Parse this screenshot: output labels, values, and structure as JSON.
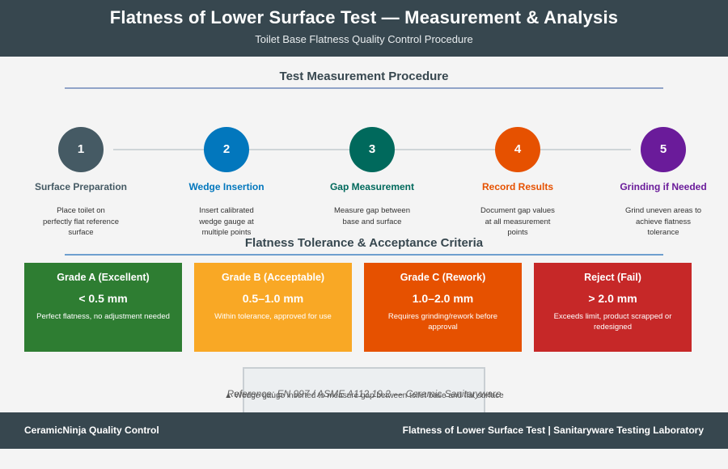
{
  "header": {
    "title": "Flatness of Lower Surface Test — Measurement & Analysis",
    "subtitle": "Toilet Base Flatness Quality Control Procedure"
  },
  "procedure": {
    "title": "Test Measurement Procedure",
    "steps": [
      {
        "number": "1",
        "label": "Surface Preparation",
        "desc": "Place toilet on perfectly flat reference surface",
        "color": "#455a64"
      },
      {
        "number": "2",
        "label": "Wedge Insertion",
        "desc": "Insert calibrated wedge gauge at multiple points",
        "color": "#0277bd"
      },
      {
        "number": "3",
        "label": "Gap Measurement",
        "desc": "Measure gap between base and surface",
        "color": "#00695c"
      },
      {
        "number": "4",
        "label": "Record Results",
        "desc": "Document gap values at all measurement points",
        "color": "#e65100"
      },
      {
        "number": "5",
        "label": "Grinding if Needed",
        "desc": "Grind uneven areas to achieve flatness tolerance",
        "color": "#6a1b9a"
      }
    ]
  },
  "criteria": {
    "title": "Flatness Tolerance & Acceptance Criteria",
    "grades": [
      {
        "name": "Grade A (Excellent)",
        "value": "< 0.5 mm",
        "desc": "Perfect flatness, no adjustment needed",
        "color": "#2e7d32"
      },
      {
        "name": "Grade B (Acceptable)",
        "value": "0.5–1.0 mm",
        "desc": "Within tolerance, approved for use",
        "color": "#f9a825"
      },
      {
        "name": "Grade C (Rework)",
        "value": "1.0–2.0 mm",
        "desc": "Requires grinding/rework before approval",
        "color": "#e65100"
      },
      {
        "name": "Reject (Fail)",
        "value": "> 2.0 mm",
        "desc": "Exceeds limit, product scrapped or redesigned",
        "color": "#c62828"
      }
    ]
  },
  "figure": {
    "caption": "▲ Wedge gauge inserted to measure gap between toilet base and flat surface"
  },
  "reference": "Reference: EN 997 / ASME A112.19.2 — Ceramic Sanitaryware",
  "footer": {
    "left": "CeramicNinja Quality Control",
    "right": "Flatness of Lower Surface Test | Sanitaryware Testing Laboratory"
  }
}
